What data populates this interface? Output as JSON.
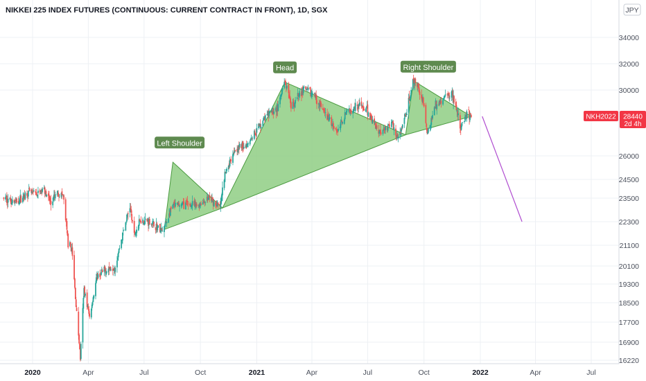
{
  "chart_data": {
    "type": "candlestick",
    "title": "NIKKEI 225 INDEX FUTURES (CONTINUOUS: CURRENT CONTRACT IN FRONT), 1D, SGX",
    "currency": "JPY",
    "y_ticks": [
      34000,
      32000,
      30000,
      28440,
      26000,
      24500,
      23500,
      22300,
      21100,
      20100,
      19300,
      18500,
      17700,
      16900,
      16220
    ],
    "y_tick_labels": [
      "34000",
      "32000",
      "30000",
      "",
      "26000",
      "24500",
      "23500",
      "22300",
      "21100",
      "20100",
      "19300",
      "18500",
      "17700",
      "16900",
      "16220"
    ],
    "x_ticks": [
      "2020",
      "Apr",
      "Jul",
      "Oct",
      "2021",
      "Apr",
      "Jul",
      "Oct",
      "2022",
      "Apr",
      "Jul"
    ],
    "x_bold": [
      "2020",
      "2021",
      "2022"
    ],
    "price_badge": {
      "symbol": "NKH2022",
      "price": "28440",
      "countdown": "2d 4h",
      "color": "#f23645"
    },
    "colors": {
      "up": "#26a69a",
      "down": "#ef5350",
      "pattern_fill": "#8fce84",
      "pattern_stroke": "#4a9a3f",
      "label_bg": "#5e8a4f",
      "projection": "#b04dd0"
    },
    "price_path": [
      [
        "2019-11-15",
        23500
      ],
      [
        "2019-12-05",
        23300
      ],
      [
        "2019-12-25",
        23800
      ],
      [
        "2020-01-10",
        23700
      ],
      [
        "2020-01-20",
        24000
      ],
      [
        "2020-01-31",
        23200
      ],
      [
        "2020-02-10",
        23800
      ],
      [
        "2020-02-20",
        23600
      ],
      [
        "2020-02-28",
        21200
      ],
      [
        "2020-03-05",
        20900
      ],
      [
        "2020-03-12",
        18400
      ],
      [
        "2020-03-19",
        16300
      ],
      [
        "2020-03-25",
        19100
      ],
      [
        "2020-04-03",
        17900
      ],
      [
        "2020-04-15",
        19600
      ],
      [
        "2020-04-28",
        19900
      ],
      [
        "2020-05-15",
        20100
      ],
      [
        "2020-05-29",
        21900
      ],
      [
        "2020-06-08",
        23100
      ],
      [
        "2020-06-15",
        21600
      ],
      [
        "2020-06-25",
        22400
      ],
      [
        "2020-07-10",
        22300
      ],
      [
        "2020-07-31",
        21800
      ],
      [
        "2020-08-17",
        23100
      ],
      [
        "2020-09-07",
        23200
      ],
      [
        "2020-09-25",
        23100
      ],
      [
        "2020-10-15",
        23500
      ],
      [
        "2020-11-02",
        23000
      ],
      [
        "2020-11-10",
        24800
      ],
      [
        "2020-11-25",
        26400
      ],
      [
        "2020-12-15",
        26700
      ],
      [
        "2020-12-30",
        27500
      ],
      [
        "2021-01-15",
        28400
      ],
      [
        "2021-02-05",
        29000
      ],
      [
        "2021-02-16",
        30600
      ],
      [
        "2021-02-26",
        28900
      ],
      [
        "2021-03-18",
        30100
      ],
      [
        "2021-04-05",
        29700
      ],
      [
        "2021-04-20",
        28700
      ],
      [
        "2021-05-13",
        27500
      ],
      [
        "2021-05-25",
        28600
      ],
      [
        "2021-06-15",
        29200
      ],
      [
        "2021-07-01",
        28700
      ],
      [
        "2021-07-20",
        27500
      ],
      [
        "2021-08-10",
        28000
      ],
      [
        "2021-08-20",
        27000
      ],
      [
        "2021-09-01",
        28400
      ],
      [
        "2021-09-14",
        30700
      ],
      [
        "2021-09-30",
        29400
      ],
      [
        "2021-10-06",
        27300
      ],
      [
        "2021-10-20",
        29100
      ],
      [
        "2021-11-05",
        29600
      ],
      [
        "2021-11-16",
        29800
      ],
      [
        "2021-11-30",
        27800
      ],
      [
        "2021-12-10",
        28600
      ],
      [
        "2021-12-17",
        28440
      ]
    ],
    "projection": [
      [
        "2021-12-17",
        28440
      ],
      [
        "2022-03-10",
        22300
      ]
    ],
    "annotations": [
      {
        "text": "Left Shoulder"
      },
      {
        "text": "Head"
      },
      {
        "text": "Right Shoulder"
      }
    ]
  }
}
